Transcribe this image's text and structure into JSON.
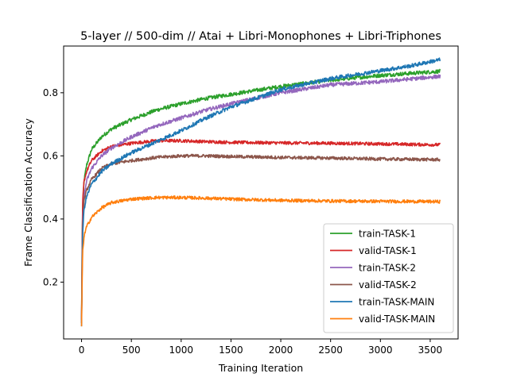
{
  "chart_data": {
    "type": "line",
    "title": "5-layer // 500-dim // Atai + Libri-Monophones + Libri-Triphones",
    "xlabel": "Training Iteration",
    "ylabel": "Frame Classification Accuracy",
    "xlim": [
      -180,
      3780
    ],
    "ylim": [
      0.02,
      0.948
    ],
    "xticks": [
      0,
      500,
      1000,
      1500,
      2000,
      2500,
      3000,
      3500
    ],
    "yticks": [
      0.2,
      0.4,
      0.6,
      0.8
    ],
    "xtick_labels": [
      "0",
      "500",
      "1000",
      "1500",
      "2000",
      "2500",
      "3000",
      "3500"
    ],
    "ytick_labels": [
      "0.2",
      "0.4",
      "0.6",
      "0.8"
    ],
    "grid": false,
    "legend_position": "lower-right",
    "series": [
      {
        "name": "train-TASK-1",
        "color": "#2ca02c",
        "x": [
          0,
          10,
          25,
          50,
          100,
          200,
          300,
          500,
          750,
          1000,
          1250,
          1500,
          2000,
          2500,
          3000,
          3600
        ],
        "y": [
          0.08,
          0.43,
          0.52,
          0.57,
          0.62,
          0.66,
          0.685,
          0.715,
          0.745,
          0.765,
          0.782,
          0.795,
          0.82,
          0.84,
          0.855,
          0.868
        ],
        "noise": 0.006
      },
      {
        "name": "valid-TASK-1",
        "color": "#d62728",
        "x": [
          0,
          10,
          25,
          50,
          100,
          200,
          300,
          500,
          750,
          1000,
          1250,
          1500,
          2000,
          2500,
          3000,
          3600
        ],
        "y": [
          0.08,
          0.45,
          0.52,
          0.55,
          0.585,
          0.615,
          0.63,
          0.64,
          0.648,
          0.648,
          0.645,
          0.643,
          0.641,
          0.64,
          0.638,
          0.635
        ],
        "noise": 0.005
      },
      {
        "name": "train-TASK-2",
        "color": "#9467bd",
        "x": [
          0,
          10,
          25,
          50,
          100,
          200,
          300,
          500,
          750,
          1000,
          1250,
          1500,
          2000,
          2500,
          3000,
          3600
        ],
        "y": [
          0.07,
          0.38,
          0.47,
          0.52,
          0.56,
          0.6,
          0.625,
          0.66,
          0.695,
          0.72,
          0.745,
          0.765,
          0.8,
          0.825,
          0.835,
          0.852
        ],
        "noise": 0.006
      },
      {
        "name": "valid-TASK-2",
        "color": "#8c564b",
        "x": [
          0,
          10,
          25,
          50,
          100,
          200,
          300,
          500,
          750,
          1000,
          1250,
          1500,
          2000,
          2500,
          3000,
          3600
        ],
        "y": [
          0.07,
          0.37,
          0.46,
          0.49,
          0.525,
          0.56,
          0.575,
          0.585,
          0.595,
          0.6,
          0.6,
          0.598,
          0.595,
          0.593,
          0.59,
          0.588
        ],
        "noise": 0.005
      },
      {
        "name": "train-TASK-MAIN",
        "color": "#1f77b4",
        "x": [
          0,
          10,
          25,
          50,
          100,
          200,
          300,
          500,
          750,
          1000,
          1250,
          1500,
          2000,
          2500,
          3000,
          3300,
          3600
        ],
        "y": [
          0.06,
          0.35,
          0.43,
          0.47,
          0.51,
          0.55,
          0.575,
          0.61,
          0.645,
          0.68,
          0.72,
          0.755,
          0.81,
          0.845,
          0.87,
          0.885,
          0.905
        ],
        "noise": 0.006
      },
      {
        "name": "valid-TASK-MAIN",
        "color": "#ff7f0e",
        "x": [
          0,
          10,
          25,
          50,
          100,
          200,
          300,
          500,
          750,
          1000,
          1250,
          1500,
          2000,
          2500,
          3000,
          3600
        ],
        "y": [
          0.06,
          0.29,
          0.345,
          0.375,
          0.405,
          0.435,
          0.452,
          0.463,
          0.468,
          0.468,
          0.466,
          0.463,
          0.459,
          0.457,
          0.456,
          0.455
        ],
        "noise": 0.005
      }
    ]
  }
}
